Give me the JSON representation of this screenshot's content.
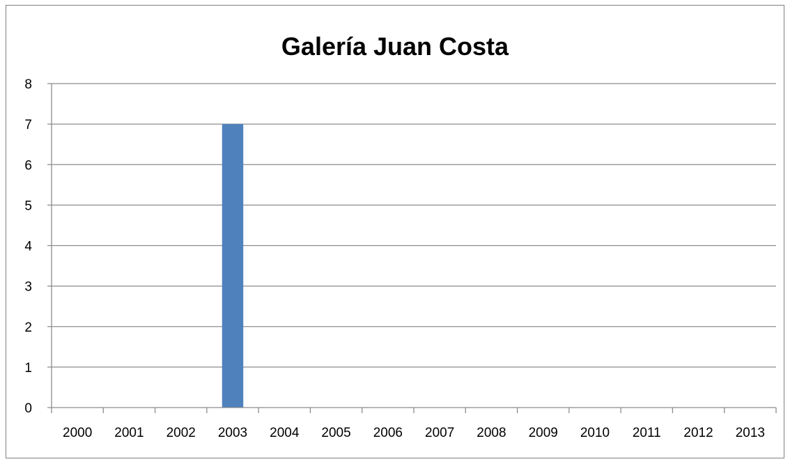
{
  "chart_data": {
    "type": "bar",
    "title": "Galería Juan Costa",
    "xlabel": "",
    "ylabel": "",
    "categories": [
      "2000",
      "2001",
      "2002",
      "2003",
      "2004",
      "2005",
      "2006",
      "2007",
      "2008",
      "2009",
      "2010",
      "2011",
      "2012",
      "2013"
    ],
    "values": [
      0,
      0,
      0,
      7,
      0,
      0,
      0,
      0,
      0,
      0,
      0,
      0,
      0,
      0
    ],
    "ylim": [
      0,
      8
    ],
    "yticks": [
      0,
      1,
      2,
      3,
      4,
      5,
      6,
      7,
      8
    ],
    "grid": true,
    "legend": "none",
    "colors": {
      "bar": "#4f81bd",
      "grid": "#8c8c8c",
      "axis": "#8c8c8c",
      "border": "#7f7f7f"
    }
  }
}
